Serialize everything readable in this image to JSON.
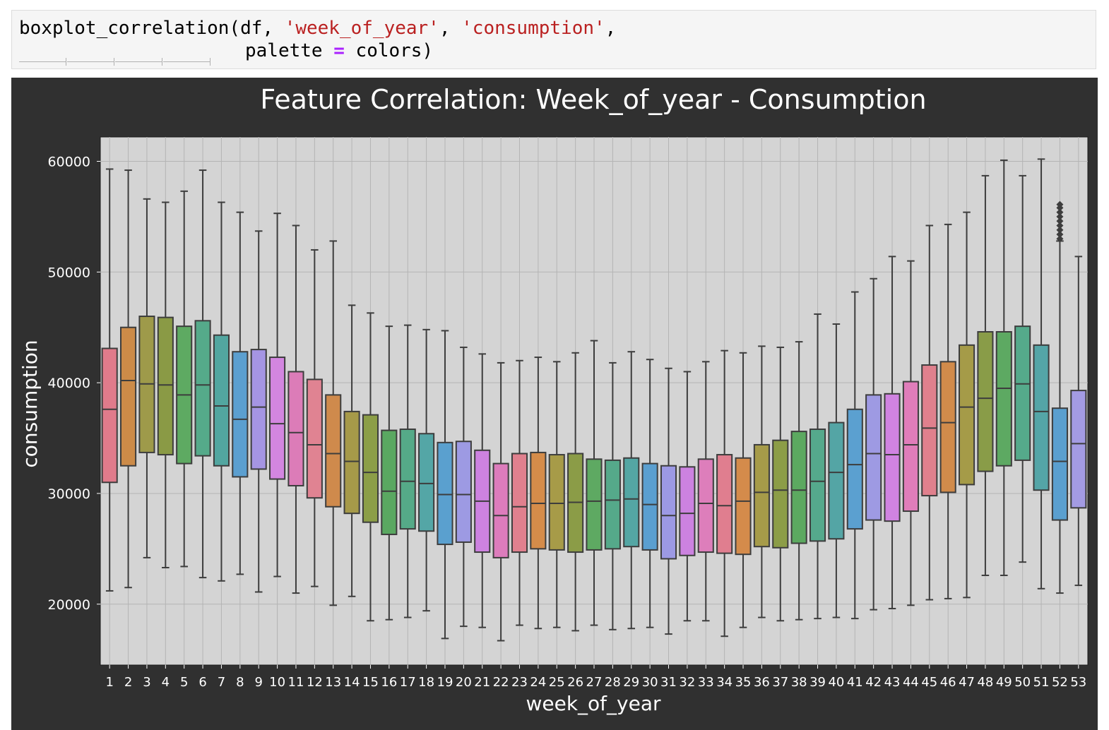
{
  "code": {
    "line1_func": "boxplot_correlation(df, ",
    "line1_arg1": "'week_of_year'",
    "line1_sep": ", ",
    "line1_arg2": "'consumption'",
    "line1_end": ",",
    "line2_a": "palette ",
    "line2_op": "=",
    "line2_b": " colors)"
  },
  "chart_data": {
    "type": "boxplot",
    "title": "Feature Correlation: Week_of_year - Consumption",
    "xlabel": "week_of_year",
    "ylabel": "consumption",
    "ylim": [
      14500,
      62200
    ],
    "yticks": [
      20000,
      30000,
      40000,
      50000,
      60000
    ],
    "grid": true,
    "categories": [
      "1",
      "2",
      "3",
      "4",
      "5",
      "6",
      "7",
      "8",
      "9",
      "10",
      "11",
      "12",
      "13",
      "14",
      "15",
      "16",
      "17",
      "18",
      "19",
      "20",
      "21",
      "22",
      "23",
      "24",
      "25",
      "26",
      "27",
      "28",
      "29",
      "30",
      "31",
      "32",
      "33",
      "34",
      "35",
      "36",
      "37",
      "38",
      "39",
      "40",
      "41",
      "42",
      "43",
      "44",
      "45",
      "46",
      "47",
      "48",
      "49",
      "50",
      "51",
      "52",
      "53"
    ],
    "boxes": [
      {
        "min": 21200,
        "q1": 31000,
        "median": 37600,
        "q3": 43100,
        "max": 59300
      },
      {
        "min": 21500,
        "q1": 32500,
        "median": 40200,
        "q3": 45000,
        "max": 59200
      },
      {
        "min": 24200,
        "q1": 33700,
        "median": 39900,
        "q3": 46000,
        "max": 56600
      },
      {
        "min": 23300,
        "q1": 33500,
        "median": 39800,
        "q3": 45900,
        "max": 56300
      },
      {
        "min": 23400,
        "q1": 32700,
        "median": 38900,
        "q3": 45100,
        "max": 57300
      },
      {
        "min": 22400,
        "q1": 33400,
        "median": 39800,
        "q3": 45600,
        "max": 59200
      },
      {
        "min": 22100,
        "q1": 32500,
        "median": 37900,
        "q3": 44300,
        "max": 56300
      },
      {
        "min": 22700,
        "q1": 31500,
        "median": 36700,
        "q3": 42800,
        "max": 55400
      },
      {
        "min": 21100,
        "q1": 32200,
        "median": 37800,
        "q3": 43000,
        "max": 53700
      },
      {
        "min": 22500,
        "q1": 31300,
        "median": 36300,
        "q3": 42300,
        "max": 55300
      },
      {
        "min": 21000,
        "q1": 30700,
        "median": 35500,
        "q3": 41000,
        "max": 54200
      },
      {
        "min": 21600,
        "q1": 29600,
        "median": 34400,
        "q3": 40300,
        "max": 52000
      },
      {
        "min": 19900,
        "q1": 28800,
        "median": 33600,
        "q3": 38900,
        "max": 52800
      },
      {
        "min": 20700,
        "q1": 28200,
        "median": 32900,
        "q3": 37400,
        "max": 47000
      },
      {
        "min": 18500,
        "q1": 27400,
        "median": 31900,
        "q3": 37100,
        "max": 46300
      },
      {
        "min": 18600,
        "q1": 26300,
        "median": 30200,
        "q3": 35700,
        "max": 45100
      },
      {
        "min": 18800,
        "q1": 26800,
        "median": 31100,
        "q3": 35800,
        "max": 45200
      },
      {
        "min": 19400,
        "q1": 26600,
        "median": 30900,
        "q3": 35400,
        "max": 44800
      },
      {
        "min": 16900,
        "q1": 25400,
        "median": 29900,
        "q3": 34600,
        "max": 44700
      },
      {
        "min": 18000,
        "q1": 25600,
        "median": 29900,
        "q3": 34700,
        "max": 43200
      },
      {
        "min": 17900,
        "q1": 24700,
        "median": 29300,
        "q3": 33900,
        "max": 42600
      },
      {
        "min": 16700,
        "q1": 24200,
        "median": 28000,
        "q3": 32700,
        "max": 41800
      },
      {
        "min": 18100,
        "q1": 24700,
        "median": 28800,
        "q3": 33600,
        "max": 42000
      },
      {
        "min": 17800,
        "q1": 25000,
        "median": 29100,
        "q3": 33700,
        "max": 42300
      },
      {
        "min": 17900,
        "q1": 24900,
        "median": 29100,
        "q3": 33500,
        "max": 41900
      },
      {
        "min": 17600,
        "q1": 24700,
        "median": 29200,
        "q3": 33600,
        "max": 42700
      },
      {
        "min": 18100,
        "q1": 24900,
        "median": 29300,
        "q3": 33100,
        "max": 43800
      },
      {
        "min": 17700,
        "q1": 25000,
        "median": 29400,
        "q3": 33000,
        "max": 41800
      },
      {
        "min": 17800,
        "q1": 25200,
        "median": 29500,
        "q3": 33200,
        "max": 42800
      },
      {
        "min": 17900,
        "q1": 24900,
        "median": 29000,
        "q3": 32700,
        "max": 42100
      },
      {
        "min": 17300,
        "q1": 24100,
        "median": 28000,
        "q3": 32500,
        "max": 41300
      },
      {
        "min": 18500,
        "q1": 24400,
        "median": 28200,
        "q3": 32400,
        "max": 41000
      },
      {
        "min": 18500,
        "q1": 24700,
        "median": 29100,
        "q3": 33100,
        "max": 41900
      },
      {
        "min": 17100,
        "q1": 24600,
        "median": 28900,
        "q3": 33500,
        "max": 42900
      },
      {
        "min": 17900,
        "q1": 24500,
        "median": 29300,
        "q3": 33200,
        "max": 42700
      },
      {
        "min": 18800,
        "q1": 25200,
        "median": 30100,
        "q3": 34400,
        "max": 43300
      },
      {
        "min": 18500,
        "q1": 25100,
        "median": 30300,
        "q3": 34800,
        "max": 43200
      },
      {
        "min": 18600,
        "q1": 25500,
        "median": 30300,
        "q3": 35600,
        "max": 43700
      },
      {
        "min": 18700,
        "q1": 25700,
        "median": 31100,
        "q3": 35800,
        "max": 46200
      },
      {
        "min": 18800,
        "q1": 25900,
        "median": 31900,
        "q3": 36400,
        "max": 45300
      },
      {
        "min": 18700,
        "q1": 26800,
        "median": 32600,
        "q3": 37600,
        "max": 48200
      },
      {
        "min": 19500,
        "q1": 27600,
        "median": 33600,
        "q3": 38900,
        "max": 49400
      },
      {
        "min": 19600,
        "q1": 27500,
        "median": 33500,
        "q3": 39000,
        "max": 51400
      },
      {
        "min": 19900,
        "q1": 28400,
        "median": 34400,
        "q3": 40100,
        "max": 51000
      },
      {
        "min": 20400,
        "q1": 29800,
        "median": 35900,
        "q3": 41600,
        "max": 54200
      },
      {
        "min": 20500,
        "q1": 30100,
        "median": 36400,
        "q3": 41900,
        "max": 54300
      },
      {
        "min": 20600,
        "q1": 30800,
        "median": 37800,
        "q3": 43400,
        "max": 55400
      },
      {
        "min": 22600,
        "q1": 32000,
        "median": 38600,
        "q3": 44600,
        "max": 58700
      },
      {
        "min": 22600,
        "q1": 32500,
        "median": 39500,
        "q3": 44600,
        "max": 60100
      },
      {
        "min": 23800,
        "q1": 33000,
        "median": 39900,
        "q3": 45100,
        "max": 58700
      },
      {
        "min": 21400,
        "q1": 30300,
        "median": 37400,
        "q3": 43400,
        "max": 60200
      },
      {
        "min": 21000,
        "q1": 27600,
        "median": 32900,
        "q3": 37700,
        "max": 52800
      },
      {
        "min": 21700,
        "q1": 28700,
        "median": 34500,
        "q3": 39300,
        "max": 51400
      }
    ],
    "outliers": [
      {
        "category": "52",
        "values": [
          53000,
          53400,
          53800,
          54200,
          54600,
          55000,
          55400,
          55800,
          56100
        ]
      }
    ],
    "palette": [
      "#e07b8b",
      "#cc8b48",
      "#9e9a4a",
      "#8a9a45",
      "#5eaa62",
      "#55aa8a",
      "#52a6a0",
      "#5b9fd0",
      "#a595e3",
      "#d386e0",
      "#dc7cb8",
      "#e08392",
      "#cf8a4c",
      "#a69a49",
      "#8c9e47",
      "#5aa861",
      "#55aa88",
      "#54a6a6",
      "#5aa0cf",
      "#9d9ae3",
      "#cd82e0",
      "#dd7cbc",
      "#e0808e",
      "#d58c4a",
      "#a79b48",
      "#8b9c47",
      "#5ea962",
      "#55a98a",
      "#54a6a4",
      "#5a9fd0",
      "#9c99e4",
      "#cc82e0",
      "#dd7ebb",
      "#e07e8f",
      "#d48b4b",
      "#a69b49",
      "#8c9d47",
      "#5ca960",
      "#55a98c",
      "#54a5a5",
      "#5ba0d0",
      "#9e9ae3",
      "#d083e1",
      "#e07dba",
      "#e0808d",
      "#d18b4b",
      "#a59b48",
      "#899c48",
      "#5da962",
      "#55aa8b",
      "#54a5a7",
      "#5a9fcf",
      "#a39be3"
    ]
  }
}
